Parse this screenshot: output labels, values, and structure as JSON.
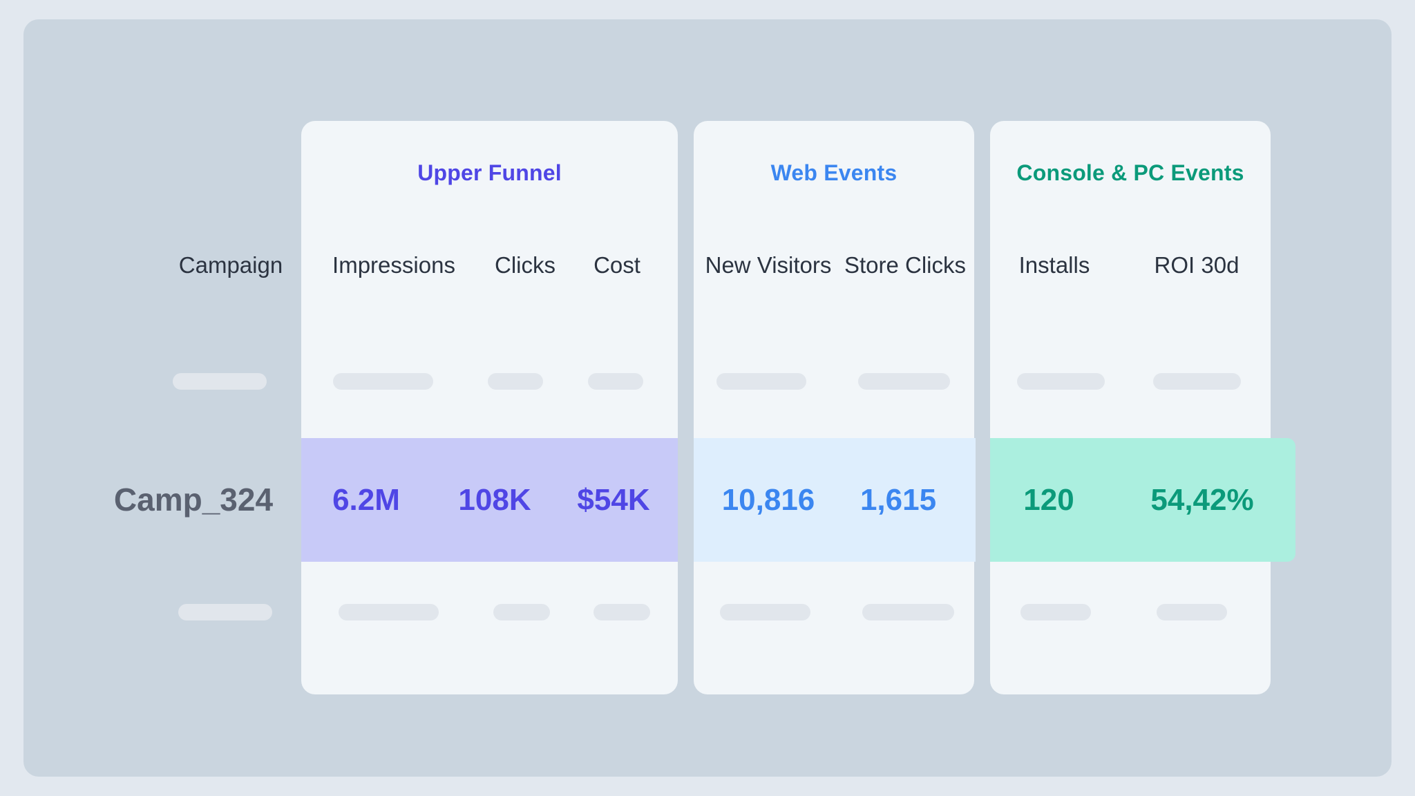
{
  "colors": {
    "upper_accent": "#4f46e5",
    "web_accent": "#3b86f0",
    "console_accent": "#0b9a7a",
    "upper_band": "#c8caf8",
    "web_band": "#deeefd",
    "console_band": "#abefdf"
  },
  "groups": {
    "upper_funnel": "Upper Funnel",
    "web_events": "Web Events",
    "console_pc_events": "Console & PC Events"
  },
  "columns": {
    "campaign": "Campaign",
    "impressions": "Impressions",
    "clicks": "Clicks",
    "cost": "Cost",
    "new_visitors": "New Visitors",
    "store_clicks": "Store Clicks",
    "installs": "Installs",
    "roi_30d": "ROI 30d"
  },
  "row": {
    "campaign": "Camp_324",
    "impressions": "6.2M",
    "clicks": "108K",
    "cost": "$54K",
    "new_visitors": "10,816",
    "store_clicks": "1,615",
    "installs": "120",
    "roi_30d": "54,42%"
  }
}
